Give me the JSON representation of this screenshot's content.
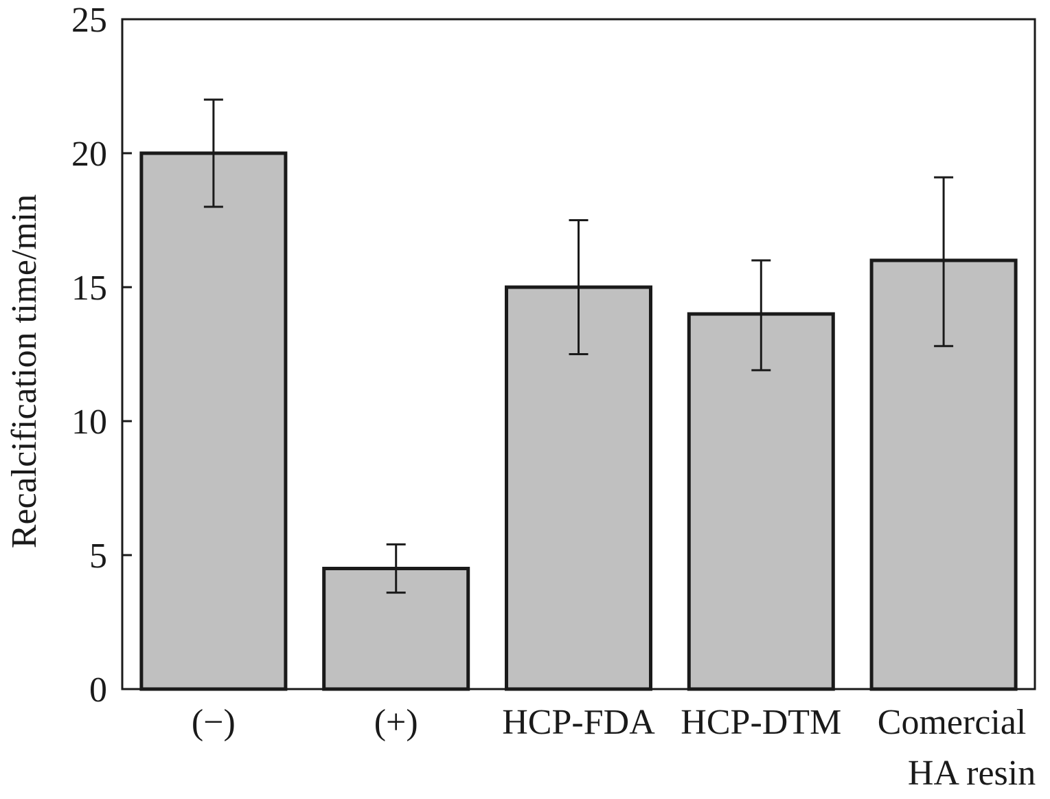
{
  "chart_data": {
    "type": "bar",
    "categories": [
      [
        "(−)"
      ],
      [
        "(+)"
      ],
      [
        "HCP-FDA"
      ],
      [
        "HCP-DTM"
      ],
      [
        "Comercial",
        "HA resin"
      ]
    ],
    "values": [
      20.0,
      4.5,
      15.0,
      14.0,
      16.0
    ],
    "error_bars": [
      [
        18.0,
        22.0
      ],
      [
        3.6,
        5.4
      ],
      [
        12.5,
        17.5
      ],
      [
        11.9,
        16.0
      ],
      [
        12.8,
        19.1
      ]
    ],
    "ylabel": "Recalcification time/min",
    "xlabel": "",
    "ylim": [
      0,
      25
    ],
    "yticks": [
      0,
      5,
      10,
      15,
      20,
      25
    ],
    "grid": false,
    "colors": {
      "bar_fill": "#c0c0c0",
      "bar_edge": "#1a1a1a",
      "axis": "#1a1a1a"
    }
  }
}
